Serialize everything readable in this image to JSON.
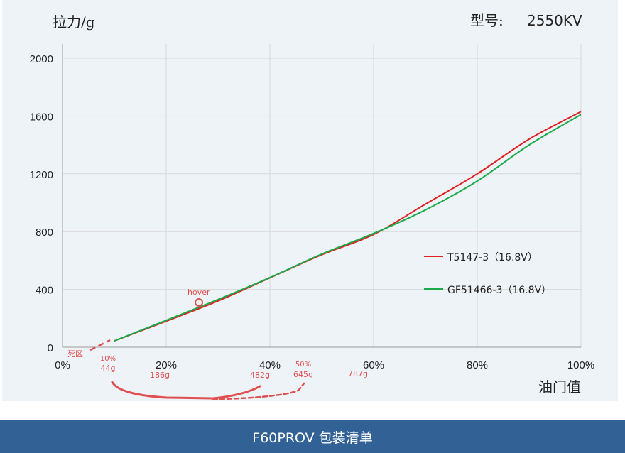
{
  "header": {
    "ylabel": "拉力/g",
    "model_label": "型号:",
    "model_value": "2550KV"
  },
  "chart_data": {
    "type": "line",
    "xlabel": "油门值",
    "ylabel": "拉力/g",
    "xlim": [
      0,
      100
    ],
    "ylim": [
      0,
      2000
    ],
    "x_ticks": [
      "0%",
      "20%",
      "40%",
      "60%",
      "80%",
      "100%"
    ],
    "y_ticks": [
      "0",
      "400",
      "800",
      "1200",
      "1600",
      "2000"
    ],
    "grid": true,
    "legend_position": "right-middle",
    "series": [
      {
        "name": "T5147-3（16.8V）",
        "color": "#e02020",
        "x": [
          10,
          20,
          30,
          40,
          50,
          60,
          70,
          80,
          90,
          100
        ],
        "y": [
          44,
          180,
          320,
          480,
          640,
          780,
          990,
          1200,
          1440,
          1630
        ]
      },
      {
        "name": "GF51466-3（16.8V）",
        "color": "#1aaa4a",
        "x": [
          10,
          20,
          30,
          40,
          50,
          60,
          70,
          80,
          90,
          100
        ],
        "y": [
          44,
          186,
          330,
          482,
          645,
          787,
          950,
          1150,
          1400,
          1610
        ]
      }
    ],
    "annotations": {
      "dead_zone": "死区",
      "hover": "hover",
      "marks": [
        {
          "pct": "10%",
          "value": "44g"
        },
        {
          "pct": "",
          "value": "186g"
        },
        {
          "pct": "",
          "value": "482g"
        },
        {
          "pct": "50%",
          "value": "645g"
        },
        {
          "pct": "",
          "value": "787g"
        }
      ]
    }
  },
  "footer": {
    "title": "F60PROV 包装清单"
  },
  "colors": {
    "panel_bg": "#eef3f8",
    "grid": "#d8d8d8",
    "annotation_red": "#e05050",
    "footer_bg": "#326295"
  }
}
